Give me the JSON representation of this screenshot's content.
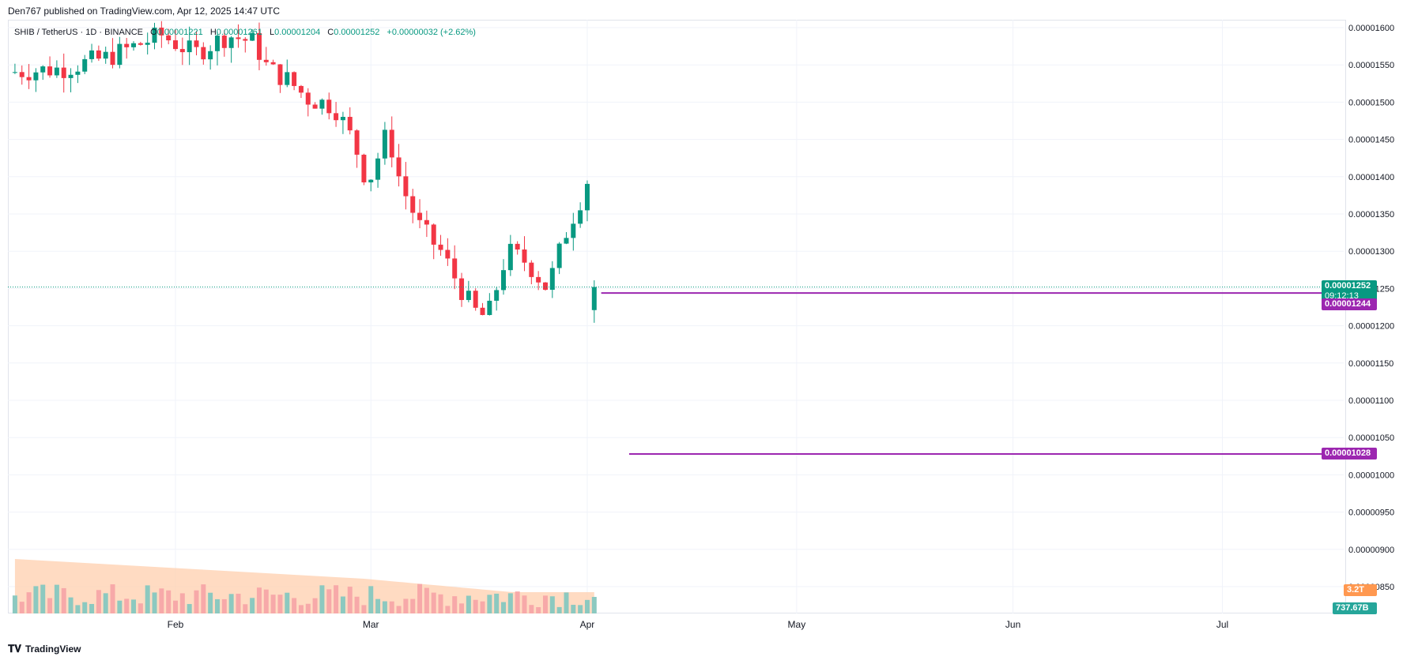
{
  "header": {
    "text": "Den767 published on TradingView.com, Apr 12, 2025 14:47 UTC"
  },
  "legend": {
    "symbol": "SHIB / TetherUS · 1D · BINANCE",
    "o_label": "O",
    "o_value": "0.00001221",
    "h_label": "H",
    "h_value": "0.00001261",
    "l_label": "L",
    "l_value": "0.00001204",
    "c_label": "C",
    "c_value": "0.00001252",
    "change": "+0.00000032 (+2.62%)"
  },
  "tags": {
    "last_price": "0.00001252",
    "countdown": "09:12:13",
    "upper_line": "0.00001244",
    "lower_line": "0.00001028",
    "vol_ma": "3.2T",
    "volume": "737.67B"
  },
  "footer": {
    "brand": "TradingView",
    "logo_icon": "tradingview-logo-icon"
  },
  "colors": {
    "up": "#089981",
    "down": "#f23645",
    "hline": "#9c27b0",
    "vol_up": "#8cc9c0",
    "vol_down": "#f7a9a9",
    "vol_ma_fill": "#ffcca8",
    "vol_ma_tag": "#ff9850",
    "grid": "#f0f3fa"
  },
  "chart_data": {
    "type": "candlestick",
    "y_ticks": [
      "0.00001600",
      "0.00001550",
      "0.00001500",
      "0.00001450",
      "0.00001400",
      "0.00001350",
      "0.00001300",
      "0.00001250",
      "0.00001200",
      "0.00001150",
      "0.00001100",
      "0.00001050",
      "0.00001000",
      "0.00000950",
      "0.00000900",
      "0.00000850"
    ],
    "x_ticks": [
      {
        "label": "Feb",
        "day": 0
      },
      {
        "label": "Mar",
        "day": 28
      },
      {
        "label": "Apr",
        "day": 59
      },
      {
        "label": "May",
        "day": 89
      },
      {
        "label": "Jun",
        "day": 120
      },
      {
        "label": "Jul",
        "day": 150
      }
    ],
    "y_range": [
      8.3e-06,
      1.61e-05
    ],
    "first_candle_day": -23,
    "candles": [
      [
        1.221e-05,
        1.261e-05,
        1.204e-05,
        1.252e-05
      ]
    ],
    "hlines": [
      {
        "value": 1.244e-05,
        "from_day": 61
      },
      {
        "value": 1.028e-05,
        "from_day": 65
      }
    ],
    "last_price": 1.252e-05
  }
}
